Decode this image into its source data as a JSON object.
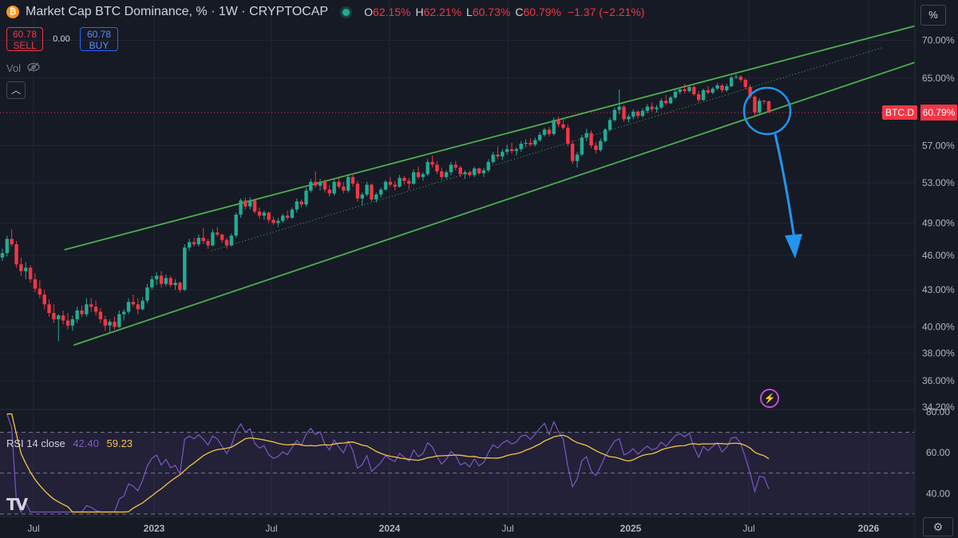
{
  "header": {
    "title": "Market Cap BTC Dominance, % · 1W · CRYPTOCAP",
    "ohlc": [
      {
        "label": "O",
        "value": "62.15%"
      },
      {
        "label": "H",
        "value": "62.21%"
      },
      {
        "label": "L",
        "value": "60.73%"
      },
      {
        "label": "C",
        "value": "60.79%"
      }
    ],
    "change": "−1.37 (−2.21%)"
  },
  "trade": {
    "sell_price": "60.78",
    "sell_label": "SELL",
    "spread": "0.00",
    "buy_price": "60.78",
    "buy_label": "BUY"
  },
  "volume_label": "Vol",
  "price_axis": {
    "unit": "%",
    "labels": [
      "70.00%",
      "65.00%",
      "57.00%",
      "53.00%",
      "49.00%",
      "46.00%",
      "43.00%",
      "40.00%",
      "38.00%",
      "36.00%",
      "34.20%"
    ]
  },
  "last_price": {
    "symbol": "BTC.D",
    "value": "60.79%"
  },
  "rsi": {
    "label": "RSI 14 close",
    "value": "42.40",
    "ma_value": "59.23",
    "axis_labels": [
      "80.00",
      "60.00",
      "40.00"
    ]
  },
  "time_axis": [
    "Jul",
    "2023",
    "Jul",
    "2024",
    "Jul",
    "2025",
    "Jul",
    "2026"
  ],
  "colors": {
    "background": "#161a25",
    "up": "#22ab94",
    "down": "#f23645",
    "channel": "#4caf50",
    "rsi": "#7e57c2",
    "rsi_ma": "#f6c343",
    "annotation": "#2196f3"
  },
  "chart_data": {
    "type": "candlestick",
    "title": "Market Cap BTC Dominance, % · 1W · CRYPTOCAP",
    "scale": "log",
    "ylim": [
      34.2,
      72.5
    ],
    "x_range": [
      "2022-05",
      "2026-03"
    ],
    "series": [
      {
        "name": "BTC.D",
        "values": [
          [
            45.8,
            46.6,
            45.5,
            46.2
          ],
          [
            46.2,
            47.8,
            45.9,
            47.5
          ],
          [
            47.5,
            48.4,
            46.8,
            47.0
          ],
          [
            47.0,
            47.3,
            44.9,
            45.2
          ],
          [
            45.2,
            45.8,
            44.2,
            44.6
          ],
          [
            44.6,
            45.4,
            43.9,
            44.9
          ],
          [
            44.9,
            45.1,
            43.6,
            43.9
          ],
          [
            43.9,
            44.4,
            42.8,
            43.1
          ],
          [
            43.1,
            43.8,
            42.3,
            42.6
          ],
          [
            42.6,
            43.0,
            41.4,
            41.8
          ],
          [
            41.8,
            42.2,
            40.8,
            41.1
          ],
          [
            41.1,
            41.8,
            40.3,
            40.6
          ],
          [
            40.6,
            41.0,
            38.9,
            40.9
          ],
          [
            40.9,
            41.3,
            40.2,
            40.5
          ],
          [
            40.5,
            41.1,
            39.8,
            40.1
          ],
          [
            40.1,
            40.9,
            39.7,
            40.6
          ],
          [
            40.6,
            41.6,
            40.3,
            41.3
          ],
          [
            41.3,
            41.7,
            40.8,
            41.0
          ],
          [
            41.0,
            42.3,
            40.8,
            41.8
          ],
          [
            41.8,
            42.3,
            41.2,
            41.6
          ],
          [
            41.6,
            42.1,
            40.9,
            41.2
          ],
          [
            41.2,
            41.5,
            40.3,
            40.6
          ],
          [
            40.6,
            40.9,
            39.7,
            40.1
          ],
          [
            40.1,
            40.6,
            39.6,
            40.4
          ],
          [
            40.4,
            40.8,
            39.8,
            40.0
          ],
          [
            40.0,
            41.3,
            39.9,
            41.0
          ],
          [
            41.0,
            41.4,
            40.5,
            41.2
          ],
          [
            41.2,
            42.3,
            41.0,
            42.0
          ],
          [
            42.0,
            42.6,
            41.6,
            41.8
          ],
          [
            41.8,
            42.3,
            41.0,
            41.4
          ],
          [
            41.4,
            42.4,
            41.3,
            42.1
          ],
          [
            42.1,
            43.5,
            41.9,
            43.2
          ],
          [
            43.2,
            44.2,
            43.0,
            43.9
          ],
          [
            43.9,
            44.5,
            43.4,
            44.2
          ],
          [
            44.2,
            44.6,
            43.2,
            43.5
          ],
          [
            43.5,
            44.3,
            43.3,
            44.0
          ],
          [
            44.0,
            44.2,
            43.2,
            43.4
          ],
          [
            43.4,
            43.9,
            43.0,
            43.6
          ],
          [
            43.6,
            43.7,
            42.8,
            43.0
          ],
          [
            43.0,
            47.0,
            42.9,
            46.7
          ],
          [
            46.7,
            47.5,
            46.4,
            47.2
          ],
          [
            47.2,
            47.6,
            46.8,
            47.0
          ],
          [
            47.0,
            47.9,
            46.8,
            47.6
          ],
          [
            47.6,
            48.5,
            47.0,
            47.3
          ],
          [
            47.3,
            47.5,
            46.6,
            46.9
          ],
          [
            46.9,
            48.4,
            46.8,
            48.1
          ],
          [
            48.1,
            48.6,
            47.7,
            47.9
          ],
          [
            47.9,
            48.0,
            47.1,
            47.4
          ],
          [
            47.4,
            47.6,
            46.6,
            46.9
          ],
          [
            46.9,
            48.0,
            46.8,
            47.8
          ],
          [
            47.8,
            50.0,
            47.6,
            49.8
          ],
          [
            49.8,
            51.4,
            49.5,
            51.2
          ],
          [
            51.2,
            51.5,
            50.3,
            50.6
          ],
          [
            50.6,
            51.5,
            50.3,
            51.2
          ],
          [
            51.2,
            51.3,
            49.9,
            50.1
          ],
          [
            50.1,
            50.5,
            49.4,
            49.7
          ],
          [
            49.7,
            50.2,
            49.3,
            50.0
          ],
          [
            50.0,
            50.1,
            49.0,
            49.3
          ],
          [
            49.3,
            49.6,
            48.8,
            49.0
          ],
          [
            49.0,
            49.5,
            48.6,
            49.2
          ],
          [
            49.2,
            49.9,
            49.0,
            49.7
          ],
          [
            49.7,
            50.2,
            49.3,
            49.5
          ],
          [
            49.5,
            50.5,
            49.4,
            50.3
          ],
          [
            50.3,
            51.4,
            50.0,
            51.1
          ],
          [
            51.1,
            51.3,
            50.5,
            50.8
          ],
          [
            50.8,
            52.5,
            50.6,
            52.2
          ],
          [
            52.2,
            53.4,
            52.0,
            53.1
          ],
          [
            53.1,
            54.2,
            52.5,
            52.7
          ],
          [
            52.7,
            53.4,
            52.2,
            53.1
          ],
          [
            53.1,
            53.3,
            52.0,
            52.3
          ],
          [
            52.3,
            52.8,
            51.6,
            51.9
          ],
          [
            51.9,
            53.4,
            51.7,
            53.1
          ],
          [
            53.1,
            53.5,
            52.4,
            52.6
          ],
          [
            52.6,
            53.1,
            51.9,
            52.2
          ],
          [
            52.2,
            53.9,
            52.0,
            53.6
          ],
          [
            53.6,
            54.0,
            52.6,
            52.9
          ],
          [
            52.9,
            53.2,
            51.1,
            51.4
          ],
          [
            51.4,
            52.0,
            50.7,
            51.8
          ],
          [
            51.8,
            53.1,
            51.6,
            52.8
          ],
          [
            52.8,
            52.9,
            51.1,
            51.3
          ],
          [
            51.3,
            52.0,
            51.0,
            51.8
          ],
          [
            51.8,
            52.5,
            51.5,
            52.3
          ],
          [
            52.3,
            53.3,
            52.2,
            53.1
          ],
          [
            53.1,
            53.6,
            52.6,
            52.8
          ],
          [
            52.8,
            53.2,
            52.2,
            52.6
          ],
          [
            52.6,
            53.8,
            52.5,
            53.5
          ],
          [
            53.5,
            53.7,
            52.8,
            53.2
          ],
          [
            53.2,
            53.5,
            52.3,
            52.9
          ],
          [
            52.9,
            54.4,
            52.8,
            54.1
          ],
          [
            54.1,
            54.7,
            53.4,
            53.6
          ],
          [
            53.6,
            54.1,
            53.2,
            53.9
          ],
          [
            53.9,
            55.5,
            53.7,
            55.2
          ],
          [
            55.2,
            55.9,
            54.6,
            54.9
          ],
          [
            54.9,
            55.3,
            53.9,
            54.2
          ],
          [
            54.2,
            54.6,
            53.3,
            53.6
          ],
          [
            53.6,
            54.3,
            53.4,
            54.1
          ],
          [
            54.1,
            55.2,
            53.8,
            54.9
          ],
          [
            54.9,
            55.3,
            54.3,
            54.6
          ],
          [
            54.6,
            54.8,
            53.6,
            53.9
          ],
          [
            53.9,
            54.3,
            53.4,
            54.1
          ],
          [
            54.1,
            54.3,
            53.6,
            53.8
          ],
          [
            53.8,
            54.7,
            53.6,
            54.5
          ],
          [
            54.5,
            54.6,
            53.8,
            54.0
          ],
          [
            54.0,
            54.5,
            53.6,
            54.3
          ],
          [
            54.3,
            55.5,
            54.1,
            55.2
          ],
          [
            55.2,
            56.3,
            55.0,
            56.0
          ],
          [
            56.0,
            56.9,
            55.5,
            55.8
          ],
          [
            55.8,
            56.6,
            55.4,
            56.3
          ],
          [
            56.3,
            57.1,
            56.0,
            56.6
          ],
          [
            56.6,
            57.3,
            56.1,
            56.4
          ],
          [
            56.4,
            56.8,
            55.9,
            56.6
          ],
          [
            56.6,
            57.5,
            56.3,
            57.2
          ],
          [
            57.2,
            57.7,
            56.8,
            57.3
          ],
          [
            57.3,
            57.8,
            56.9,
            57.1
          ],
          [
            57.1,
            57.9,
            56.9,
            57.6
          ],
          [
            57.6,
            58.5,
            57.4,
            58.2
          ],
          [
            58.2,
            59.0,
            58.0,
            58.8
          ],
          [
            58.8,
            59.1,
            58.0,
            58.3
          ],
          [
            58.3,
            60.2,
            58.1,
            59.9
          ],
          [
            59.9,
            60.3,
            59.1,
            59.4
          ],
          [
            59.4,
            60.1,
            58.8,
            59.0
          ],
          [
            59.0,
            59.4,
            56.9,
            57.2
          ],
          [
            57.2,
            57.6,
            55.0,
            55.3
          ],
          [
            55.3,
            56.3,
            54.6,
            56.0
          ],
          [
            56.0,
            58.2,
            55.8,
            57.9
          ],
          [
            57.9,
            58.9,
            57.5,
            58.4
          ],
          [
            58.4,
            58.7,
            56.7,
            57.0
          ],
          [
            57.0,
            57.4,
            56.1,
            56.5
          ],
          [
            56.5,
            57.8,
            56.3,
            57.5
          ],
          [
            57.5,
            59.0,
            57.3,
            58.8
          ],
          [
            58.8,
            60.2,
            58.6,
            59.9
          ],
          [
            59.9,
            61.4,
            59.7,
            61.1
          ],
          [
            61.1,
            63.6,
            60.6,
            61.5
          ],
          [
            61.5,
            61.7,
            59.7,
            60.0
          ],
          [
            60.0,
            60.6,
            59.6,
            60.3
          ],
          [
            60.3,
            61.2,
            60.0,
            60.9
          ],
          [
            60.9,
            61.1,
            60.1,
            60.4
          ],
          [
            60.4,
            61.3,
            60.2,
            61.0
          ],
          [
            61.0,
            61.8,
            60.7,
            61.5
          ],
          [
            61.5,
            62.0,
            60.9,
            61.2
          ],
          [
            61.2,
            61.7,
            60.8,
            61.4
          ],
          [
            61.4,
            62.5,
            61.2,
            62.2
          ],
          [
            62.2,
            62.9,
            61.7,
            61.9
          ],
          [
            61.9,
            62.8,
            61.8,
            62.6
          ],
          [
            62.6,
            63.6,
            62.4,
            63.3
          ],
          [
            63.3,
            63.9,
            63.0,
            63.6
          ],
          [
            63.6,
            64.3,
            63.1,
            63.4
          ],
          [
            63.4,
            64.2,
            63.2,
            63.9
          ],
          [
            63.9,
            64.1,
            62.8,
            63.0
          ],
          [
            63.0,
            63.4,
            62.0,
            62.3
          ],
          [
            62.3,
            63.7,
            62.2,
            63.5
          ],
          [
            63.5,
            64.0,
            63.0,
            63.2
          ],
          [
            63.2,
            63.9,
            63.0,
            63.7
          ],
          [
            63.7,
            64.4,
            63.5,
            64.1
          ],
          [
            64.1,
            64.3,
            63.2,
            63.5
          ],
          [
            63.5,
            64.3,
            63.3,
            64.0
          ],
          [
            64.0,
            65.3,
            63.9,
            65.1
          ],
          [
            65.1,
            65.5,
            64.9,
            65.2
          ],
          [
            65.2,
            65.4,
            64.5,
            64.8
          ],
          [
            64.8,
            65.0,
            63.6,
            63.9
          ],
          [
            63.9,
            64.2,
            62.4,
            62.7
          ],
          [
            62.7,
            62.9,
            60.5,
            60.8
          ],
          [
            60.8,
            62.5,
            60.6,
            62.2
          ],
          [
            62.2,
            62.3,
            61.8,
            62.1
          ],
          [
            62.15,
            62.21,
            60.73,
            60.79
          ]
        ]
      }
    ],
    "channel": {
      "upper": [
        [
          0.07,
          46.5
        ],
        [
          1.0,
          72.2
        ]
      ],
      "lower": [
        [
          0.08,
          38.6
        ],
        [
          1.0,
          67.3
        ]
      ]
    },
    "annotations": [
      "circle at latest candles",
      "arrow pointing down"
    ],
    "rsi": {
      "name": "RSI 14 close",
      "ylim": [
        30,
        80
      ],
      "levels": [
        70,
        50,
        30
      ],
      "last": 42.4,
      "ma_last": 59.23
    }
  }
}
